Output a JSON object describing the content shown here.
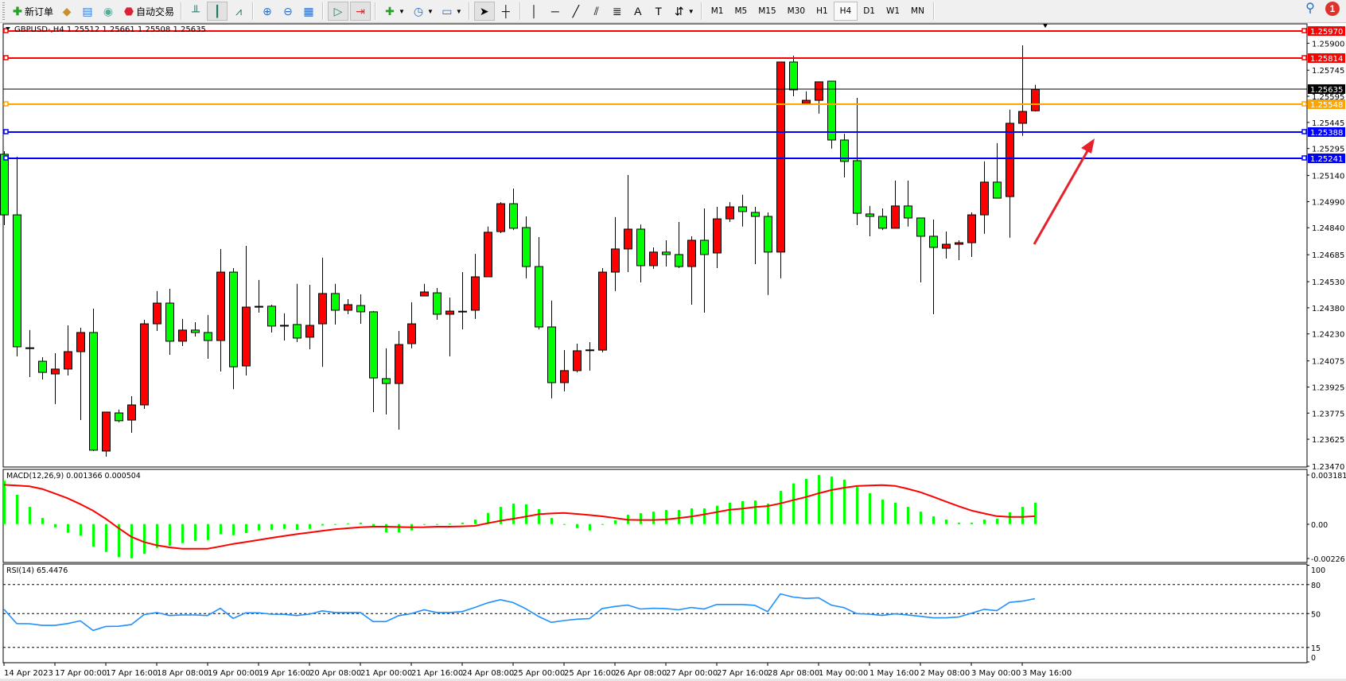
{
  "toolbar": {
    "new_order_label": "新订单",
    "auto_trading_label": "自动交易",
    "timeframes": [
      "M1",
      "M5",
      "M15",
      "M30",
      "H1",
      "H4",
      "D1",
      "W1",
      "MN"
    ],
    "active_timeframe": "H4",
    "notification_count": "1",
    "icons": [
      "new-order-icon",
      "gold-icon",
      "market-watch-icon",
      "signal-icon",
      "auto-trading-icon",
      "bar-chart-icon",
      "candlestick-icon",
      "line-chart-icon",
      "zoom-in-icon",
      "zoom-out-icon",
      "tile-windows-icon",
      "auto-scroll-icon",
      "chart-shift-icon",
      "indicators-icon",
      "periods-icon",
      "templates-icon",
      "cursor-icon",
      "crosshair-icon",
      "vertical-line-icon",
      "horizontal-line-icon",
      "trendline-icon",
      "equidistant-channel-icon",
      "fibonacci-icon",
      "text-icon",
      "text-label-icon",
      "arrows-icon",
      "search-icon",
      "notification-icon"
    ]
  },
  "chart": {
    "title": "GBPUSD-,H4  1.25512 1.25661 1.25508 1.25635",
    "macd_title": "MACD(12,26,9) 0.001366 0.000504",
    "rsi_title": "RSI(14) 65.4476",
    "colors": {
      "bull": "#ff0000",
      "bear": "#00ff00",
      "macd_hist": "#00ff00",
      "macd_signal": "#ff0000",
      "rsi": "#1e90ff",
      "arrow": "#e8202a"
    },
    "price_lines": [
      {
        "price": "1.25970",
        "color": "#ff0000"
      },
      {
        "price": "1.25814",
        "color": "#ff0000"
      },
      {
        "price": "1.25548",
        "color": "#ffa500"
      },
      {
        "price": "1.25388",
        "color": "#0000ff"
      },
      {
        "price": "1.25241",
        "color": "#0000ff"
      }
    ],
    "current_price": "1.25635",
    "annotation": "red-arrow-up-right"
  },
  "chart_data": [
    {
      "type": "candlestick",
      "symbol": "GBPUSD-",
      "timeframe": "H4",
      "ylim": [
        1.2347,
        1.2597
      ],
      "y_ticks": [
        "1.25900",
        "1.25745",
        "1.25595",
        "1.25445",
        "1.25295",
        "1.25140",
        "1.24990",
        "1.24840",
        "1.24685",
        "1.24530",
        "1.24380",
        "1.24230",
        "1.24075",
        "1.23925",
        "1.23775",
        "1.23625",
        "1.23470"
      ],
      "x_ticks": [
        "14 Apr 2023",
        "17 Apr 00:00",
        "17 Apr 16:00",
        "18 Apr 08:00",
        "19 Apr 00:00",
        "19 Apr 16:00",
        "20 Apr 08:00",
        "21 Apr 00:00",
        "21 Apr 16:00",
        "24 Apr 08:00",
        "25 Apr 00:00",
        "25 Apr 16:00",
        "26 Apr 08:00",
        "27 Apr 00:00",
        "27 Apr 16:00",
        "28 Apr 08:00",
        "1 May 00:00",
        "1 May 16:00",
        "2 May 08:00",
        "3 May 00:00",
        "3 May 16:00"
      ],
      "ohlc": [
        [
          1.25262,
          1.2528,
          1.24855,
          1.24914
        ],
        [
          1.24914,
          1.25248,
          1.24101,
          1.24156
        ],
        [
          1.24151,
          1.24252,
          1.23982,
          1.24148
        ],
        [
          1.24073,
          1.24096,
          1.23968,
          1.24009
        ],
        [
          1.24,
          1.24119,
          1.23827,
          1.24028
        ],
        [
          1.24028,
          1.24279,
          1.23991,
          1.24128
        ],
        [
          1.24128,
          1.24265,
          1.23735,
          1.24238
        ],
        [
          1.24238,
          1.24375,
          1.23557,
          1.23562
        ],
        [
          1.23557,
          1.23781,
          1.23525,
          1.23781
        ],
        [
          1.23776,
          1.23795,
          1.23722,
          1.23731
        ],
        [
          1.23735,
          1.23872,
          1.23662,
          1.23822
        ],
        [
          1.23822,
          1.24311,
          1.23799,
          1.24288
        ],
        [
          1.24288,
          1.24476,
          1.24247,
          1.24407
        ],
        [
          1.24407,
          1.24489,
          1.2411,
          1.24188
        ],
        [
          1.24188,
          1.24316,
          1.2416,
          1.24252
        ],
        [
          1.24252,
          1.24297,
          1.24215,
          1.24238
        ],
        [
          1.24238,
          1.24339,
          1.24087,
          1.24192
        ],
        [
          1.24192,
          1.24718,
          1.24014,
          1.24585
        ],
        [
          1.24585,
          1.24608,
          1.23913,
          1.24041
        ],
        [
          1.24046,
          1.24736,
          1.23991,
          1.24384
        ],
        [
          1.24389,
          1.2454,
          1.24352,
          1.24386
        ],
        [
          1.24389,
          1.24398,
          1.24238,
          1.24275
        ],
        [
          1.24279,
          1.24348,
          1.24192,
          1.24277
        ],
        [
          1.24284,
          1.24517,
          1.24183,
          1.24206
        ],
        [
          1.24211,
          1.24512,
          1.24142,
          1.24279
        ],
        [
          1.24288,
          1.24668,
          1.24041,
          1.24462
        ],
        [
          1.24462,
          1.24517,
          1.24284,
          1.24366
        ],
        [
          1.24366,
          1.2443,
          1.24343,
          1.24398
        ],
        [
          1.24393,
          1.24457,
          1.24288,
          1.24357
        ],
        [
          1.24357,
          1.24361,
          1.23781,
          1.23977
        ],
        [
          1.23973,
          1.24147,
          1.23767,
          1.23945
        ],
        [
          1.23945,
          1.24247,
          1.2368,
          1.24169
        ],
        [
          1.24174,
          1.24412,
          1.24147,
          1.24288
        ],
        [
          1.24448,
          1.24517,
          1.24448,
          1.24471
        ],
        [
          1.24466,
          1.24494,
          1.24311,
          1.24343
        ],
        [
          1.24343,
          1.24439,
          1.24101,
          1.24361
        ],
        [
          1.24361,
          1.24585,
          1.24256,
          1.24358
        ],
        [
          1.24366,
          1.2469,
          1.24316,
          1.24558
        ],
        [
          1.24558,
          1.24846,
          1.24558,
          1.24814
        ],
        [
          1.24818,
          1.24987,
          1.24809,
          1.24978
        ],
        [
          1.24978,
          1.25065,
          1.24827,
          1.24837
        ],
        [
          1.24841,
          1.24905,
          1.24549,
          1.24617
        ],
        [
          1.24617,
          1.24786,
          1.24256,
          1.2427
        ],
        [
          1.2427,
          1.24421,
          1.23859,
          1.2395
        ],
        [
          1.2395,
          1.24137,
          1.239,
          1.24019
        ],
        [
          1.24019,
          1.24174,
          1.24009,
          1.24133
        ],
        [
          1.24133,
          1.24183,
          1.24019,
          1.24136
        ],
        [
          1.24137,
          1.24608,
          1.24124,
          1.24585
        ],
        [
          1.24585,
          1.24901,
          1.24476,
          1.24718
        ],
        [
          1.24718,
          1.25143,
          1.24585,
          1.24832
        ],
        [
          1.24832,
          1.24859,
          1.24526,
          1.24622
        ],
        [
          1.24622,
          1.24727,
          1.24604,
          1.247
        ],
        [
          1.247,
          1.24768,
          1.24617,
          1.24686
        ],
        [
          1.24686,
          1.24873,
          1.24608,
          1.24617
        ],
        [
          1.24617,
          1.24791,
          1.24398,
          1.24768
        ],
        [
          1.24768,
          1.24951,
          1.24352,
          1.24686
        ],
        [
          1.24695,
          1.2496,
          1.24608,
          1.24891
        ],
        [
          1.24891,
          1.24987,
          1.24873,
          1.2496
        ],
        [
          1.2496,
          1.25029,
          1.24846,
          1.24933
        ],
        [
          1.24928,
          1.2496,
          1.24631,
          1.24905
        ],
        [
          1.24905,
          1.24928,
          1.24453,
          1.247
        ],
        [
          1.247,
          1.25792,
          1.24549,
          1.25792
        ],
        [
          1.25792,
          1.25828,
          1.25595,
          1.25632
        ],
        [
          1.25554,
          1.25623,
          1.25554,
          1.25572
        ],
        [
          1.25572,
          1.25678,
          1.25495,
          1.25678
        ],
        [
          1.25682,
          1.25682,
          1.25294,
          1.25344
        ],
        [
          1.25344,
          1.2538,
          1.25129,
          1.25221
        ],
        [
          1.25225,
          1.25586,
          1.24855,
          1.24923
        ],
        [
          1.24919,
          1.24965,
          1.24791,
          1.24905
        ],
        [
          1.24905,
          1.24951,
          1.24827,
          1.24837
        ],
        [
          1.24837,
          1.25111,
          1.24837,
          1.24965
        ],
        [
          1.24965,
          1.25111,
          1.24846,
          1.24896
        ],
        [
          1.24896,
          1.24896,
          1.24526,
          1.24791
        ],
        [
          1.24791,
          1.24887,
          1.24343,
          1.24727
        ],
        [
          1.24722,
          1.24818,
          1.24663,
          1.24745
        ],
        [
          1.24745,
          1.24768,
          1.24654,
          1.24754
        ],
        [
          1.24754,
          1.24928,
          1.24672,
          1.24914
        ],
        [
          1.24914,
          1.25221,
          1.24805,
          1.25102
        ],
        [
          1.25102,
          1.25326,
          1.2501,
          1.2501
        ],
        [
          1.25019,
          1.25518,
          1.24782,
          1.2544
        ],
        [
          1.2544,
          1.25888,
          1.25367,
          1.25508
        ],
        [
          1.25512,
          1.25661,
          1.25508,
          1.25635
        ]
      ]
    },
    {
      "type": "bar+line",
      "name": "MACD(12,26,9)",
      "ylim": [
        -0.00226,
        0.003181
      ],
      "y_ticks": [
        "0.003181",
        "0.00",
        "-0.00226"
      ],
      "histogram": [
        0.00279,
        0.00188,
        0.00111,
        0.00039,
        -0.00021,
        -0.00056,
        -0.00074,
        -0.00145,
        -0.0018,
        -0.00214,
        -0.00221,
        -0.00192,
        -0.00154,
        -0.0014,
        -0.00123,
        -0.00109,
        -0.00103,
        -0.00065,
        -0.00072,
        -0.00058,
        -0.00041,
        -0.00038,
        -0.00031,
        -0.00038,
        -0.00031,
        -9e-05,
        -5e-05,
        5e-05,
        9e-05,
        -0.00017,
        -0.00053,
        -0.00053,
        -0.00041,
        -3e-05,
        -5e-05,
        2e-05,
        9e-05,
        0.00029,
        0.00072,
        0.00111,
        0.00132,
        0.00127,
        0.00096,
        0.00039,
        -3e-05,
        -0.00026,
        -0.00041,
        -3e-05,
        0.00024,
        0.0006,
        0.0007,
        0.0008,
        0.00091,
        0.00091,
        0.00101,
        0.00101,
        0.00118,
        0.00137,
        0.00147,
        0.00152,
        0.00132,
        0.00214,
        0.00262,
        0.00291,
        0.00316,
        0.00306,
        0.00286,
        0.00239,
        0.00198,
        0.00157,
        0.00137,
        0.00111,
        0.0008,
        0.0005,
        0.00029,
        9e-05,
        9e-05,
        0.00029,
        0.00034,
        0.00075,
        0.00111,
        0.001366
      ],
      "signal": [
        0.00253,
        0.00248,
        0.00243,
        0.00226,
        0.00197,
        0.00166,
        0.00128,
        0.00086,
        0.00034,
        -0.00026,
        -0.00082,
        -0.00116,
        -0.00137,
        -0.0015,
        -0.00159,
        -0.00159,
        -0.00159,
        -0.00144,
        -0.00128,
        -0.00116,
        -0.00103,
        -0.00089,
        -0.00077,
        -0.00065,
        -0.00055,
        -0.00044,
        -0.00034,
        -0.00027,
        -0.00021,
        -0.00017,
        -0.00017,
        -0.00019,
        -0.00021,
        -0.0002,
        -0.00017,
        -0.00017,
        -0.00015,
        -0.00012,
        5e-05,
        0.00021,
        0.00034,
        0.00048,
        0.00063,
        0.00068,
        0.00072,
        0.00065,
        0.00058,
        0.0005,
        0.00039,
        0.00027,
        0.00026,
        0.00026,
        0.00029,
        0.00038,
        0.00048,
        0.00062,
        0.00077,
        0.00092,
        0.00099,
        0.00109,
        0.00116,
        0.00133,
        0.00154,
        0.00174,
        0.00198,
        0.00219,
        0.00234,
        0.00245,
        0.00248,
        0.00251,
        0.00246,
        0.00227,
        0.00205,
        0.00176,
        0.00145,
        0.00115,
        0.00087,
        0.00068,
        0.00051,
        0.00046,
        0.00046,
        0.000504
      ]
    },
    {
      "type": "line",
      "name": "RSI(14)",
      "ylim": [
        0,
        100
      ],
      "y_ticks": [
        "100",
        "80",
        "50",
        "15",
        "0"
      ],
      "levels": [
        80,
        50,
        15
      ],
      "values": [
        54.4,
        39.7,
        39.5,
        37.8,
        37.8,
        39.7,
        42.5,
        32.5,
        36.7,
        36.9,
        38.6,
        48.9,
        51.1,
        48,
        48.6,
        48.6,
        48,
        55.5,
        45,
        50.8,
        50.8,
        49.4,
        49.2,
        48,
        49.4,
        52.8,
        51.1,
        51.1,
        51.1,
        41.7,
        41.7,
        47.8,
        50,
        53.9,
        51.1,
        51.1,
        52,
        56.4,
        61.1,
        64.4,
        61.4,
        55,
        47,
        40.9,
        42.8,
        44.2,
        44.8,
        55.2,
        57.4,
        58.8,
        54.7,
        55.5,
        55.2,
        53.9,
        56.3,
        54.7,
        59.4,
        59.4,
        59.4,
        58.5,
        51.9,
        70.4,
        67.1,
        65.7,
        66.3,
        58.8,
        56.1,
        50,
        49.4,
        48.1,
        49.7,
        48.6,
        47.2,
        45.6,
        45.6,
        46.4,
        50.3,
        54.4,
        53,
        61.6,
        62.9,
        65.45
      ]
    }
  ]
}
